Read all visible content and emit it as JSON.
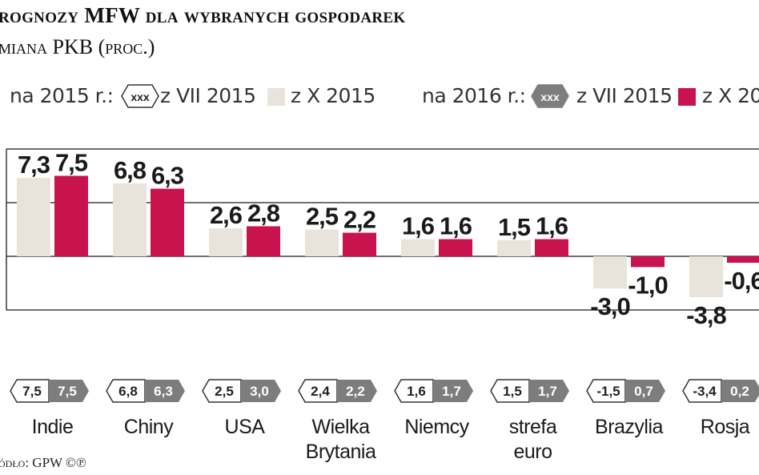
{
  "title": "rognozy MFW dla wybranych gospodarek",
  "subtitle": "miana PKB (proc.)",
  "legend": {
    "label_2015": "na 2015 r.:",
    "badge_text": "xxx",
    "series_jul": "z VII 2015",
    "series_oct": "z X 2015",
    "label_2016": "na 2016 r.:",
    "series_jul_2016": "z VII 2015",
    "series_oct_2016": "z X 20"
  },
  "source": "ódło: GPW ©℗",
  "colors": {
    "bar_light": "#e8e4dc",
    "bar_red": "#c8134f",
    "badge_dark": "#7d7d7d",
    "grid": "#1a1a1a"
  },
  "chart_data": {
    "type": "bar",
    "title": "rognozy MFW dla wybranych gospodarek",
    "subtitle": "miana PKB (proc.)",
    "categories": [
      "Indie",
      "Chiny",
      "USA",
      "Wielka Brytania",
      "Niemcy",
      "strefa euro",
      "Brazylia",
      "Rosja"
    ],
    "category_lines": [
      [
        "Indie"
      ],
      [
        "Chiny"
      ],
      [
        "USA"
      ],
      [
        "Wielka",
        "Brytania"
      ],
      [
        "Niemcy"
      ],
      [
        "strefa",
        "euro"
      ],
      [
        "Brazylia"
      ],
      [
        "Rosja"
      ]
    ],
    "series": [
      {
        "name": "na 2015 r. z VII 2015",
        "values": [
          7.5,
          6.8,
          2.5,
          2.4,
          1.6,
          1.5,
          -1.5,
          -3.4
        ]
      },
      {
        "name": "na 2015 r. z X 2015",
        "values": [
          7.3,
          6.8,
          2.6,
          2.5,
          1.6,
          1.5,
          -3.0,
          -3.8
        ]
      },
      {
        "name": "na 2016 r. z VII 2015",
        "values": [
          7.5,
          6.3,
          3.0,
          2.2,
          1.7,
          1.7,
          0.7,
          0.2
        ]
      },
      {
        "name": "na 2016 r. z X 2015",
        "values": [
          7.5,
          6.3,
          2.8,
          2.2,
          1.6,
          1.6,
          -1.0,
          -0.6
        ]
      }
    ],
    "bar_series": [
      "na 2015 r. z X 2015",
      "na 2016 r. z X 2015"
    ],
    "badge_series": [
      "na 2015 r. z VII 2015",
      "na 2016 r. z VII 2015"
    ],
    "bar_labels_2015": [
      "7,3",
      "6,8",
      "2,6",
      "2,5",
      "1,6",
      "1,5",
      "-3,0",
      "-3,8"
    ],
    "bar_labels_2016": [
      "7,5",
      "6,3",
      "2,8",
      "2,2",
      "1,6",
      "1,6",
      "-1,0",
      "-0,6"
    ],
    "badge_labels_2015": [
      "7,5",
      "6,8",
      "2,5",
      "2,4",
      "1,6",
      "1,5",
      "-1,5",
      "-3,4"
    ],
    "badge_labels_2016": [
      "7,5",
      "6,3",
      "3,0",
      "2,2",
      "1,7",
      "1,7",
      "0,7",
      "0,2"
    ],
    "ylim": [
      -5,
      10
    ],
    "gridlines": [
      10,
      5,
      0,
      -5
    ],
    "grid": true,
    "legend_position": "top"
  }
}
